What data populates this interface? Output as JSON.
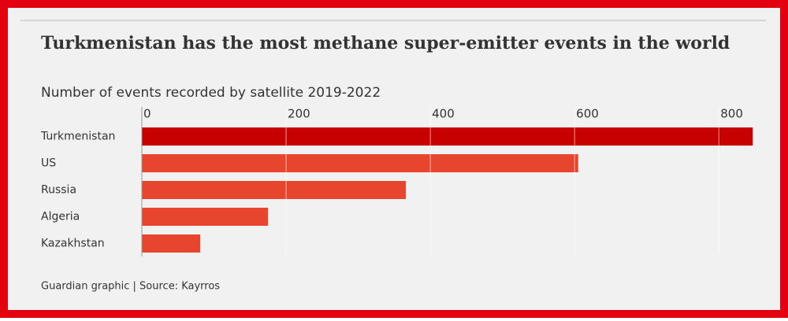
{
  "chart_data": {
    "type": "bar",
    "orientation": "horizontal",
    "title": "Turkmenistan has the most methane super-emitter events in the world",
    "subtitle": "Number of events recorded by satellite 2019-2022",
    "source": "Guardian graphic | Source: Kayrros",
    "categories": [
      "Turkmenistan",
      "US",
      "Russia",
      "Algeria",
      "Kazakhstan"
    ],
    "values": [
      847,
      605,
      366,
      175,
      81
    ],
    "colors": [
      "#c70000",
      "#e8452f",
      "#e8452f",
      "#e8452f",
      "#e8452f"
    ],
    "xlim": [
      0,
      850
    ],
    "xticks": [
      0,
      200,
      400,
      600,
      800
    ],
    "grid": true
  }
}
